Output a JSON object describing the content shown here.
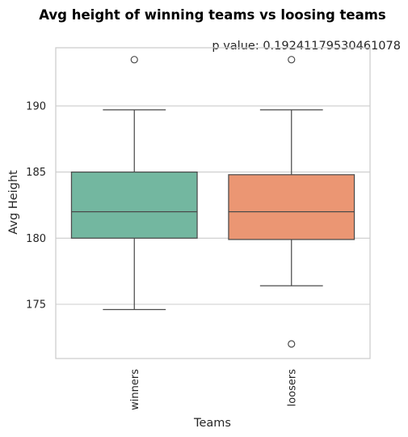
{
  "chart_data": {
    "type": "box",
    "title": "Avg height of winning teams vs loosing teams",
    "annotation": "p value: 0.19241179530461078",
    "xlabel": "Teams",
    "ylabel": "Avg Height",
    "categories": [
      "winners",
      "loosers"
    ],
    "yticks": [
      175,
      180,
      185,
      190
    ],
    "ylim": [
      170.9,
      194.4
    ],
    "grid": "horizontal",
    "boxes": [
      {
        "name": "winners",
        "color": "#73b7a0",
        "whisker_low": 174.6,
        "q1": 180.0,
        "median": 182.0,
        "q3": 185.0,
        "whisker_high": 189.7,
        "outliers": [
          193.5
        ]
      },
      {
        "name": "loosers",
        "color": "#eb9673",
        "whisker_low": 176.4,
        "q1": 179.9,
        "median": 182.0,
        "q3": 184.8,
        "whisker_high": 189.7,
        "outliers": [
          193.5,
          172.0
        ]
      }
    ]
  }
}
